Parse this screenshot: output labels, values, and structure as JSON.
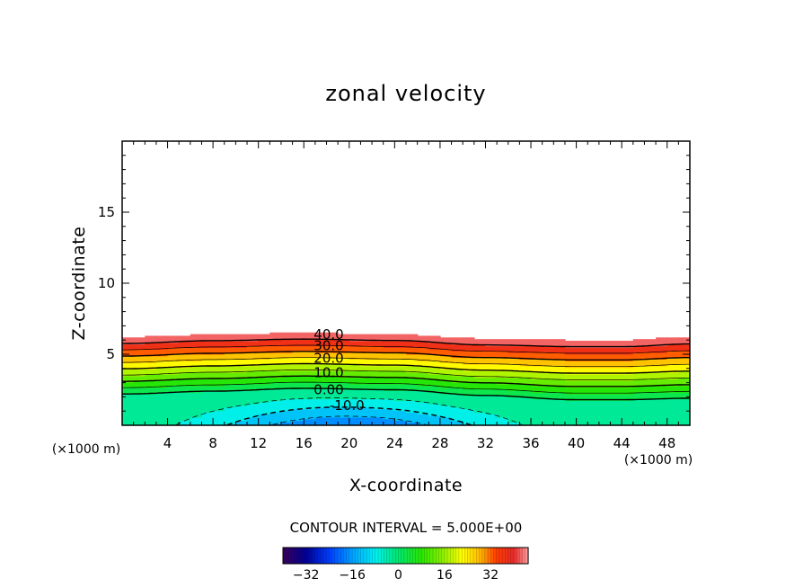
{
  "chart_data": {
    "type": "contour",
    "title": "zonal velocity",
    "xlabel": "X-coordinate",
    "ylabel": "Z-coordinate",
    "x_unit": "(×1000 m)",
    "xlim": [
      0,
      50
    ],
    "ylim": [
      0,
      20
    ],
    "x_ticks": [
      4,
      8,
      12,
      16,
      20,
      24,
      28,
      32,
      36,
      40,
      44,
      48
    ],
    "y_ticks": [
      5,
      10,
      15
    ],
    "contour_interval_text": "CONTOUR INTERVAL = 5.000E+00",
    "contour_interval": 5.0,
    "contour_labels": [
      {
        "text": "40.0",
        "x": 18.2,
        "z": 6.4
      },
      {
        "text": "30.0",
        "x": 18.2,
        "z": 5.6
      },
      {
        "text": "20.0",
        "x": 18.2,
        "z": 4.7
      },
      {
        "text": "10.0",
        "x": 18.2,
        "z": 3.7
      },
      {
        "text": "0.00",
        "x": 18.2,
        "z": 2.5
      },
      {
        "text": "-10.0",
        "x": 19.8,
        "z": 1.4
      }
    ],
    "field": {
      "level_range": [
        -40,
        45
      ],
      "top_height_at_x": [
        [
          0,
          6.2
        ],
        [
          8,
          6.4
        ],
        [
          16,
          6.5
        ],
        [
          24,
          6.4
        ],
        [
          32,
          6.1
        ],
        [
          40,
          6.0
        ],
        [
          44,
          6.0
        ],
        [
          50,
          6.2
        ]
      ],
      "zero_contour_height_at_x": [
        [
          0,
          2.2
        ],
        [
          8,
          2.4
        ],
        [
          16,
          2.6
        ],
        [
          24,
          2.5
        ],
        [
          32,
          2.1
        ],
        [
          40,
          1.8
        ],
        [
          44,
          1.8
        ],
        [
          50,
          1.9
        ]
      ],
      "minimum_value": -20,
      "minimum_location": {
        "x": 20,
        "z": 0
      }
    },
    "colorbar": {
      "min": -40,
      "max": 45,
      "ticks": [
        -32,
        -16,
        0,
        16,
        32
      ],
      "tick_labels": [
        "−32",
        "−16",
        "0",
        "16",
        "32"
      ]
    }
  }
}
